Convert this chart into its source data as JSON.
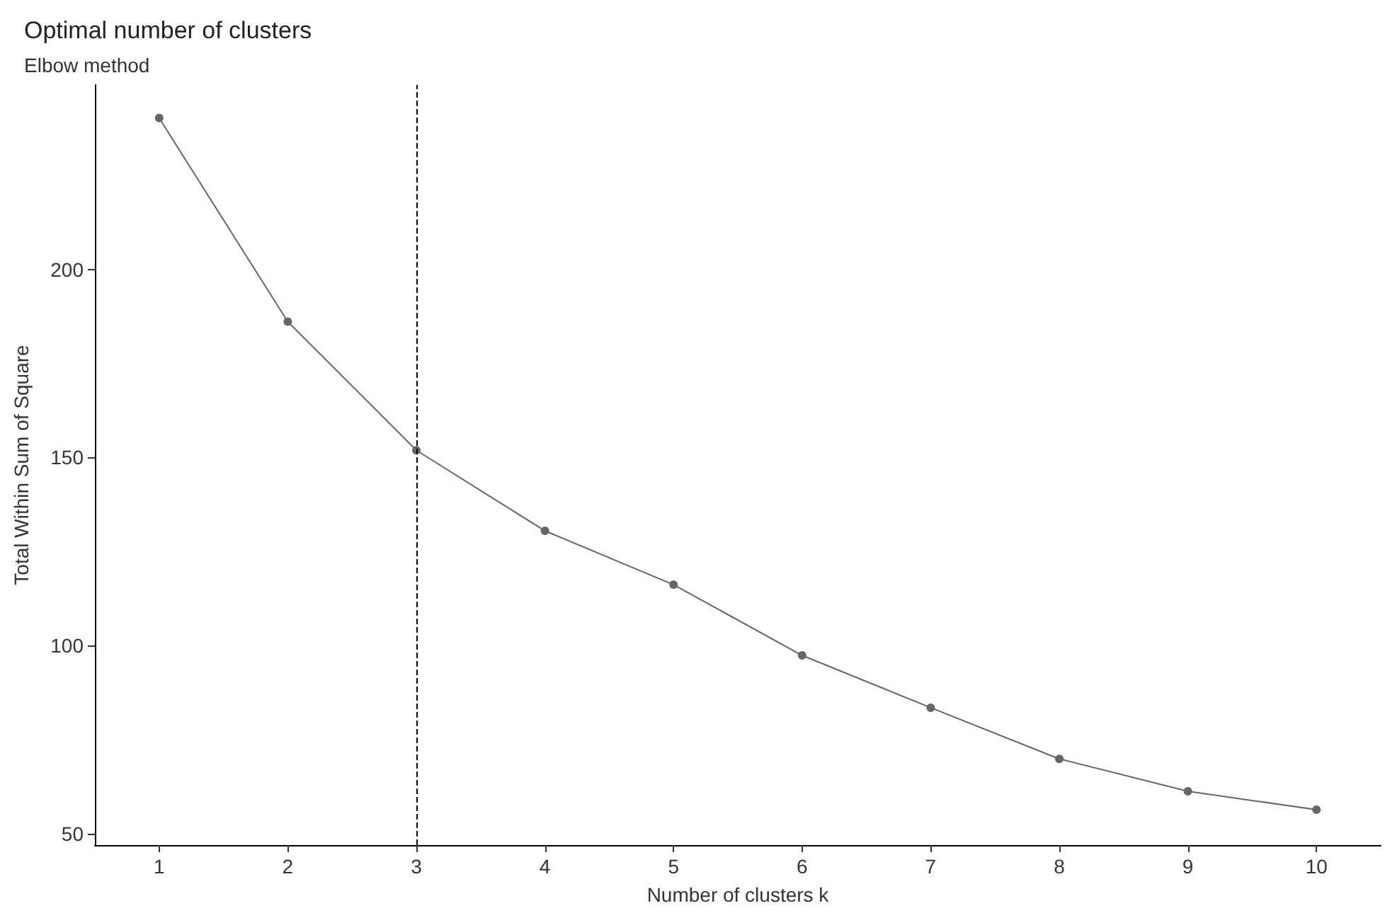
{
  "chart_data": {
    "type": "line",
    "title": "Optimal number of clusters",
    "subtitle": "Elbow method",
    "xlabel": "Number of clusters k",
    "ylabel": "Total Within Sum of Square",
    "categories": [
      "1",
      "2",
      "3",
      "4",
      "5",
      "6",
      "7",
      "8",
      "9",
      "10"
    ],
    "series": [
      {
        "color": "#666666",
        "values": [
          240.2,
          186.1,
          151.9,
          130.5,
          116.2,
          97.4,
          83.5,
          69.9,
          61.3,
          56.4
        ]
      }
    ],
    "ylim": [
      47,
      249
    ],
    "yticks": [
      50,
      100,
      150,
      200
    ],
    "ref_lines": [
      {
        "axis": "x",
        "value": "3",
        "color": "#000000",
        "line_style": "dashed"
      }
    ],
    "grid": false,
    "marker": "circle",
    "line_style": "solid"
  }
}
